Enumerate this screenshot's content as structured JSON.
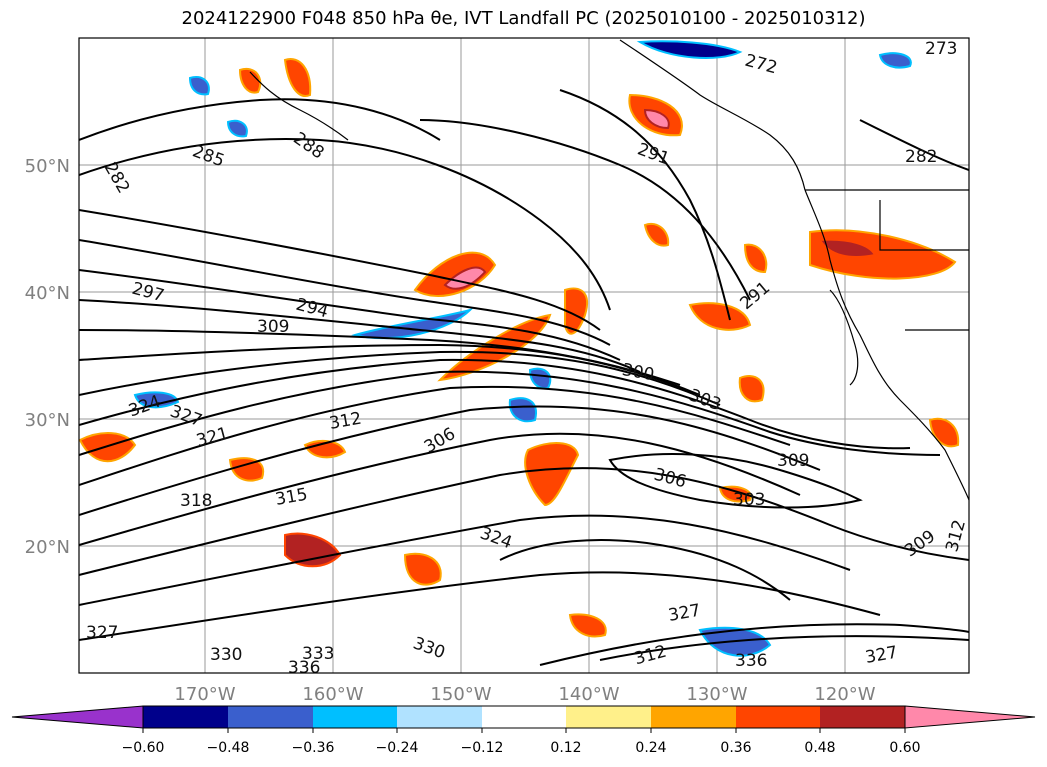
{
  "title": "2024122900 F048 850 hPa θe, IVT Landfall PC (2025010100 - 2025010312)",
  "lat_labels": [
    "50°N",
    "40°N",
    "30°N",
    "20°N"
  ],
  "lon_labels": [
    "170°W",
    "160°W",
    "150°W",
    "140°W",
    "130°W",
    "120°W"
  ],
  "colorbar": {
    "colors": [
      "#9932cc",
      "#00008b",
      "#3a5fcd",
      "#00bfff",
      "#b0e2ff",
      "#ffffff",
      "#fff08a",
      "#ffa500",
      "#ff4500",
      "#b22222",
      "#ff88aa"
    ],
    "ticks": [
      "−0.60",
      "−0.48",
      "−0.36",
      "−0.24",
      "−0.12",
      "0.12",
      "0.24",
      "0.36",
      "0.48",
      "0.60"
    ]
  },
  "contour_labels": [
    "282",
    "285",
    "288",
    "291",
    "297",
    "294",
    "309",
    "324",
    "327",
    "321",
    "312",
    "306",
    "300",
    "303",
    "309",
    "306",
    "303",
    "315",
    "318",
    "324",
    "327",
    "330",
    "333",
    "336",
    "312",
    "327",
    "330",
    "336",
    "327",
    "309",
    "312",
    "291",
    "282",
    "273",
    "272"
  ],
  "colors": {
    "grid": "#9a9a9a",
    "contour": "#000000",
    "coast": "#000000"
  }
}
